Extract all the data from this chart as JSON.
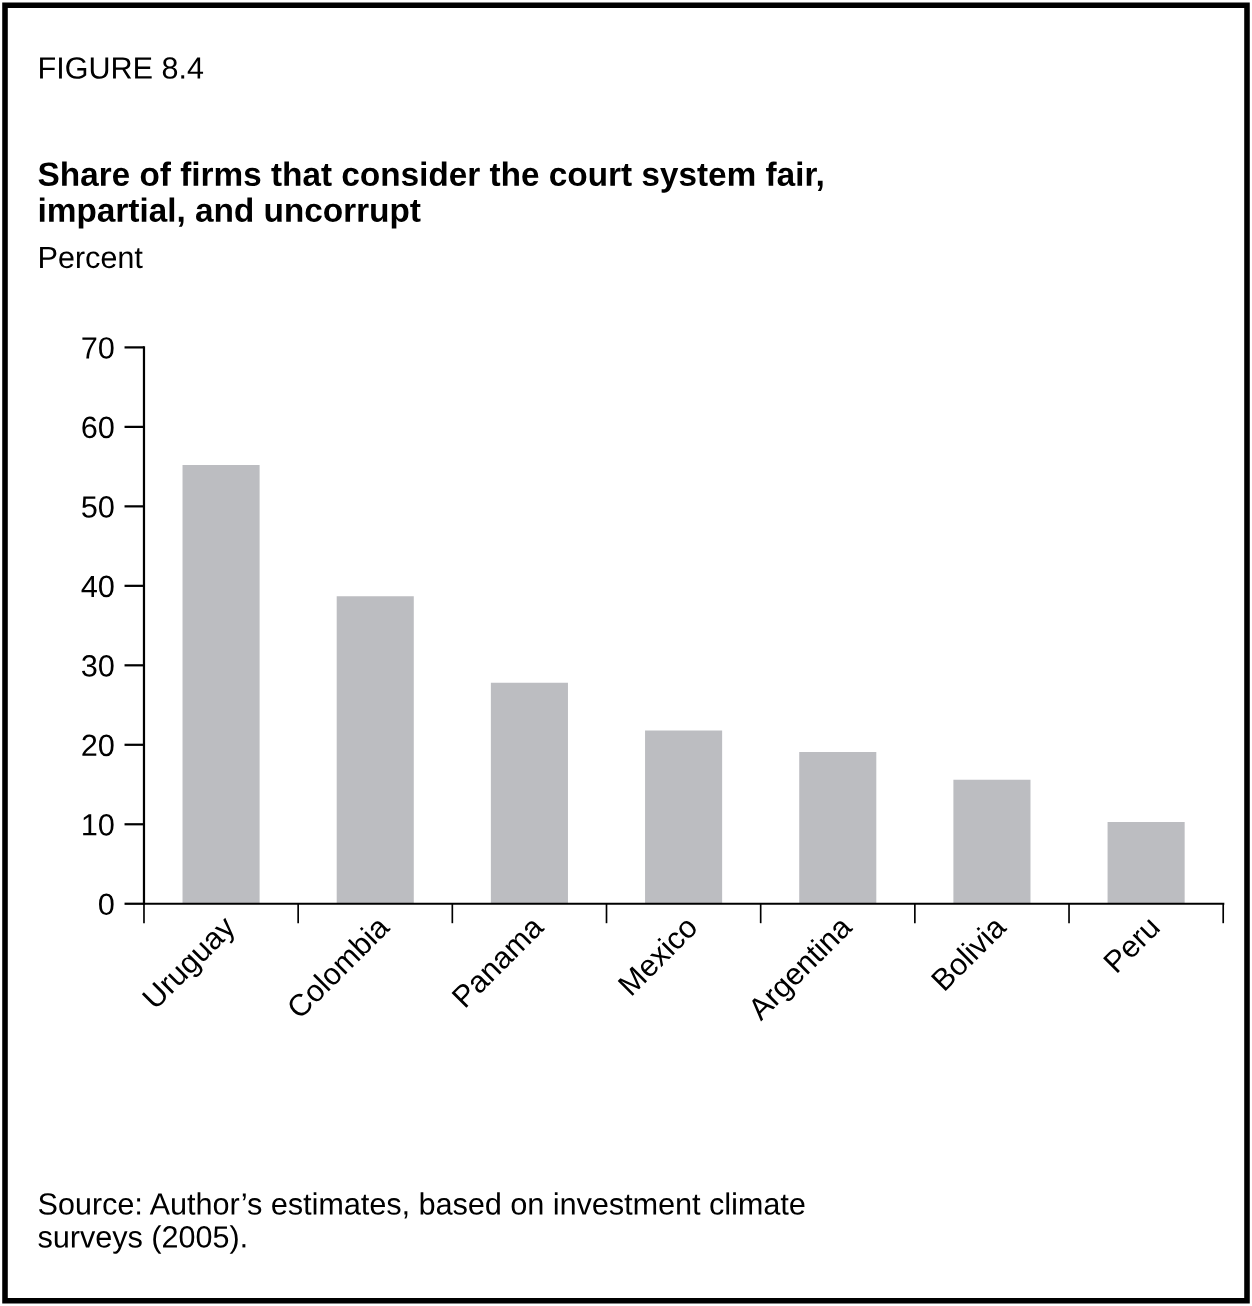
{
  "chart_data": {
    "type": "bar",
    "title": "Share of firms that consider the court system fair,\nimpartial, and uncorrupt",
    "ylabel": "Percent",
    "annotations": [
      "FIGURE 8.4",
      "Source: Author’s estimates, based on investment climate\nsurveys (2005)."
    ],
    "categories": [
      "Uruguay",
      "Colombia",
      "Panama",
      "Mexico",
      "Argentina",
      "Bolivia",
      "Peru"
    ],
    "values": [
      55.2,
      38.7,
      27.8,
      21.8,
      19.1,
      15.6,
      10.3
    ],
    "color": "#bcbdc1",
    "ylim": [
      0,
      70
    ],
    "yticks": [
      0,
      10,
      20,
      30,
      40,
      50,
      60,
      70
    ],
    "grid": false,
    "legend": false
  }
}
